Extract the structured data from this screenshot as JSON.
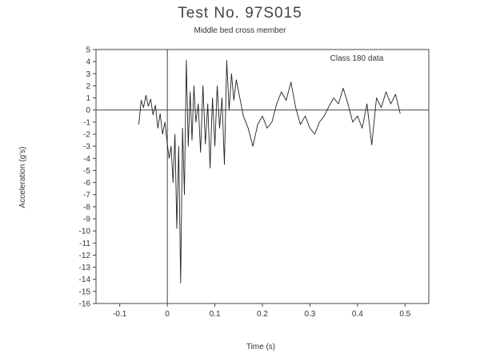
{
  "chart_data": {
    "type": "line",
    "title": "Test No. 97S015",
    "subtitle": "Middle bed cross member",
    "xlabel": "Time (s)",
    "ylabel": "Acceleration (g's)",
    "annotation": "Class 180 data",
    "xlim": [
      -0.15,
      0.55
    ],
    "ylim": [
      -16,
      5
    ],
    "x_ticks": [
      -0.1,
      0,
      0.1,
      0.2,
      0.3,
      0.4,
      0.5
    ],
    "x_tick_labels": [
      "-0.1",
      "0",
      "0.1",
      "0.2",
      "0.3",
      "0.4",
      "0.5"
    ],
    "y_ticks": [
      5,
      4,
      3,
      2,
      1,
      0,
      -1,
      -2,
      -3,
      -4,
      -5,
      -6,
      -7,
      -8,
      -9,
      -10,
      -11,
      -12,
      -13,
      -14,
      -15,
      -16
    ],
    "y_tick_labels": [
      "5",
      "4",
      "3",
      "2",
      "1",
      "0",
      "-1",
      "-2",
      "-3",
      "-4",
      "-5",
      "-6",
      "-7",
      "-8",
      "-9",
      "-10",
      "-11",
      "-12",
      "-13",
      "-14",
      "-15",
      "-16"
    ],
    "reference_lines": {
      "y": 0,
      "x": 0
    },
    "grid": false,
    "series": [
      {
        "name": "",
        "x": [
          -0.06,
          -0.055,
          -0.05,
          -0.045,
          -0.04,
          -0.035,
          -0.03,
          -0.025,
          -0.02,
          -0.015,
          -0.01,
          -0.005,
          0,
          0.004,
          0.008,
          0.012,
          0.016,
          0.02,
          0.024,
          0.028,
          0.032,
          0.036,
          0.04,
          0.044,
          0.048,
          0.052,
          0.056,
          0.06,
          0.065,
          0.07,
          0.075,
          0.08,
          0.085,
          0.09,
          0.095,
          0.1,
          0.105,
          0.11,
          0.115,
          0.12,
          0.125,
          0.13,
          0.135,
          0.14,
          0.145,
          0.15,
          0.16,
          0.17,
          0.18,
          0.19,
          0.2,
          0.21,
          0.22,
          0.23,
          0.24,
          0.25,
          0.26,
          0.27,
          0.28,
          0.29,
          0.3,
          0.31,
          0.32,
          0.33,
          0.34,
          0.35,
          0.36,
          0.37,
          0.38,
          0.39,
          0.4,
          0.41,
          0.42,
          0.43,
          0.44,
          0.45,
          0.46,
          0.47,
          0.48,
          0.49
        ],
        "y": [
          -1.2,
          0.8,
          0.2,
          1.2,
          0.3,
          0.9,
          -0.4,
          0.4,
          -1.5,
          -0.3,
          -2,
          -1,
          -2.8,
          -4,
          -3,
          -6,
          -2,
          -9.8,
          -3,
          -14.3,
          -1.5,
          -7,
          4.1,
          -3,
          1.5,
          -2.5,
          2,
          -1,
          0.5,
          -3.5,
          2,
          -2.8,
          0.5,
          -4.8,
          1,
          -3,
          2,
          -1.5,
          1,
          -4.5,
          4.1,
          0,
          3,
          0.8,
          2.5,
          1.5,
          -0.5,
          -1.5,
          -3,
          -1.2,
          -0.5,
          -1.5,
          -1,
          0.5,
          1.5,
          0.8,
          2.3,
          0.2,
          -1.2,
          -0.5,
          -1.5,
          -2,
          -1,
          -0.5,
          0.3,
          1,
          0.5,
          1.8,
          0.5,
          -1,
          -0.5,
          -1.5,
          0.5,
          -2.9,
          1,
          0.2,
          1.5,
          0.5,
          1.3,
          -0.3
        ]
      }
    ]
  }
}
